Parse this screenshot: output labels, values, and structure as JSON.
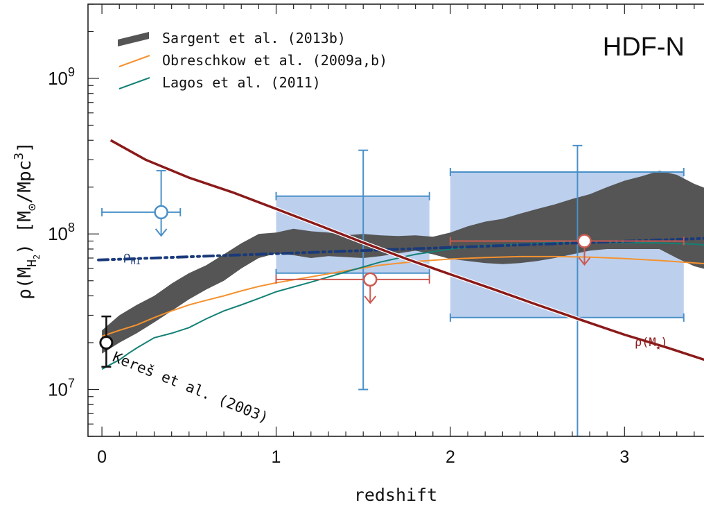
{
  "chart_data": {
    "type": "line",
    "panel_label": "HDF-N",
    "xlabel": "redshift",
    "ylabel": {
      "prefix": "ρ(M",
      "sub": "H",
      "subsub": "2",
      "middle": ") [M",
      "sun_sub": "⊙",
      "unit": "/Mpc",
      "sup": "3",
      "close": "]"
    },
    "xlim": [
      -0.08,
      3.5
    ],
    "ylim": [
      5000000,
      3000000000
    ],
    "yscale": "log",
    "x_ticks": [
      {
        "value": 0,
        "label": "0"
      },
      {
        "value": 1,
        "label": "1"
      },
      {
        "value": 2,
        "label": "2"
      },
      {
        "value": 3,
        "label": "3"
      }
    ],
    "y_ticks": [
      {
        "value": 10000000,
        "base": "10",
        "exp": "7"
      },
      {
        "value": 100000000,
        "base": "10",
        "exp": "8"
      },
      {
        "value": 1000000000,
        "base": "10",
        "exp": "9"
      }
    ],
    "legend": {
      "placement": "top-left",
      "entries": [
        {
          "label": "Sargent et al. (2013b)",
          "kind": "band",
          "color": "#555555"
        },
        {
          "label": "Obreschkow et al. (2009a,b)",
          "kind": "line",
          "color": "#f5922f"
        },
        {
          "label": "Lagos et al. (2011)",
          "kind": "line",
          "color": "#138175"
        }
      ]
    },
    "colors": {
      "band": "#555555",
      "obreschkow": "#f5922f",
      "lagos": "#138175",
      "rho_star": "#8b1a1a",
      "rho_hi": "#1a3a7a",
      "measure_blue": "#4a90c8",
      "box_fill": "#bcd0ee",
      "upper_limit_red": "#cc5a50",
      "local": "#111111"
    },
    "sargent_band": {
      "x": [
        0.0,
        0.1,
        0.2,
        0.3,
        0.4,
        0.5,
        0.6,
        0.7,
        0.8,
        0.9,
        1.0,
        1.1,
        1.2,
        1.3,
        1.4,
        1.5,
        1.6,
        1.7,
        1.8,
        1.9,
        2.0,
        2.1,
        2.2,
        2.3,
        2.4,
        2.5,
        2.6,
        2.7,
        2.8,
        2.9,
        3.0,
        3.1,
        3.2,
        3.3,
        3.4,
        3.5
      ],
      "upper": [
        24000000,
        30000000,
        35000000,
        40000000,
        48000000,
        56000000,
        63000000,
        74000000,
        87000000,
        100000000,
        102000000,
        108000000,
        104000000,
        102000000,
        98000000,
        100000000,
        98000000,
        97000000,
        98000000,
        96000000,
        102000000,
        112000000,
        120000000,
        125000000,
        135000000,
        145000000,
        155000000,
        168000000,
        180000000,
        200000000,
        220000000,
        235000000,
        255000000,
        240000000,
        210000000,
        190000000
      ],
      "lower": [
        17000000,
        20000000,
        23000000,
        27000000,
        32000000,
        38000000,
        44000000,
        50000000,
        60000000,
        70000000,
        75000000,
        73000000,
        70000000,
        72000000,
        71000000,
        70000000,
        72000000,
        75000000,
        78000000,
        74000000,
        69000000,
        67000000,
        65000000,
        64000000,
        65000000,
        67000000,
        70000000,
        74000000,
        78000000,
        80000000,
        80000000,
        80000000,
        80000000,
        70000000,
        62000000,
        58000000
      ]
    },
    "obreschkow": {
      "x": [
        0.0,
        0.1,
        0.2,
        0.3,
        0.4,
        0.5,
        0.6,
        0.7,
        0.8,
        0.9,
        1.0,
        1.2,
        1.4,
        1.6,
        1.8,
        2.0,
        2.2,
        2.4,
        2.6,
        2.8,
        3.0,
        3.2,
        3.5
      ],
      "y": [
        22000000,
        24000000,
        26000000,
        29000000,
        32000000,
        35000000,
        37500000,
        40000000,
        43000000,
        46000000,
        48500000,
        53000000,
        58000000,
        63000000,
        66500000,
        69000000,
        70500000,
        71500000,
        71500000,
        71000000,
        69500000,
        67500000,
        64000000
      ]
    },
    "lagos": {
      "x": [
        0.0,
        0.05,
        0.1,
        0.15,
        0.2,
        0.3,
        0.4,
        0.5,
        0.6,
        0.7,
        0.8,
        0.9,
        1.0,
        1.2,
        1.4,
        1.6,
        1.8,
        2.0,
        2.2,
        2.4,
        2.6,
        2.8,
        3.0,
        3.2,
        3.4,
        3.5
      ],
      "y": [
        13500000,
        14500000,
        15500000,
        17000000,
        18500000,
        21500000,
        23000000,
        25000000,
        28500000,
        32000000,
        35000000,
        38500000,
        42500000,
        49000000,
        57000000,
        66000000,
        74000000,
        80000000,
        84000000,
        86000000,
        88000000,
        88500000,
        88000000,
        87500000,
        86000000,
        84000000
      ]
    },
    "rho_star": {
      "label": "ρ(M",
      "label_sub": "★",
      "label_close": ")",
      "x": [
        0.05,
        0.25,
        0.5,
        0.75,
        1.0,
        1.25,
        1.5,
        1.75,
        2.0,
        2.25,
        2.5,
        2.75,
        3.0,
        3.25,
        3.5
      ],
      "y": [
        400000000,
        300000000,
        230000000,
        185000000,
        145000000,
        113000000,
        88000000,
        69000000,
        55000000,
        44000000,
        35000000,
        28000000,
        22500000,
        18500000,
        15000000
      ]
    },
    "rho_hi": {
      "label": "ρ",
      "label_sub": "HI",
      "x": [
        -0.02,
        3.5
      ],
      "y": [
        68000000,
        94000000
      ]
    },
    "local_point": {
      "label": "Kereš et al. (2003)",
      "x": 0.025,
      "y": 20000000,
      "err_low": 14000000,
      "err_high": 29500000
    },
    "box_measurements": [
      {
        "x_low": 1.0,
        "x_high": 1.88,
        "y_low": 56000000,
        "y_high": 175000000,
        "x_whisk": 1.5,
        "y_whisk_low": 10000000,
        "y_whisk_high": 345000000
      },
      {
        "x_low": 2.0,
        "x_high": 3.34,
        "y_low": 29000000,
        "y_high": 250000000,
        "x_whisk": 2.73,
        "y_whisk_low": 5000000,
        "y_whisk_high": 370000000
      }
    ],
    "blue_upper_limit": {
      "x": 0.34,
      "y": 138000000,
      "x_low": 0.0,
      "x_high": 0.45,
      "y_high": 255000000
    },
    "red_upper_limits": [
      {
        "x": 1.54,
        "y": 51000000,
        "x_low": 1.0,
        "x_high": 1.88
      },
      {
        "x": 2.77,
        "y": 90000000,
        "x_low": 2.0,
        "x_high": 3.34
      }
    ]
  }
}
